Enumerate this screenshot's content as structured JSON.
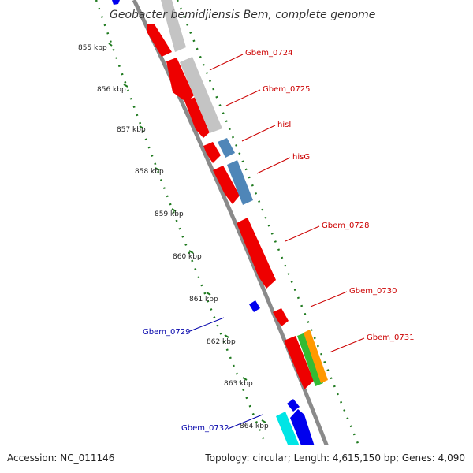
{
  "title": "Geobacter bemidjiensis Bem, complete genome",
  "accession_text": "Accession: NC_011146",
  "summary_text": "Topology: circular; Length: 4,615,150 bp; Genes: 4,090",
  "colors": {
    "backbone": "#8a8a8a",
    "ticks": "#1f7a1f",
    "forward_label": "#cc0000",
    "reverse_label": "#0000aa",
    "red": "#ee0000",
    "gray": "#c4c4c4",
    "steelblue": "#4f86b8",
    "blue": "#0000ee",
    "cyan": "#00e5e5",
    "green": "#33bb33",
    "orange": "#ff9900"
  },
  "ticks": [
    "855 kbp",
    "856 kbp",
    "857 kbp",
    "858 kbp",
    "859 kbp",
    "860 kbp",
    "861 kbp",
    "862 kbp",
    "863 kbp",
    "864 kbp"
  ],
  "labels": {
    "gbem_0724": "Gbem_0724",
    "gbem_0725": "Gbem_0725",
    "hisI": "hisI",
    "hisG": "hisG",
    "gbem_0728": "Gbem_0728",
    "gbem_0730": "Gbem_0730",
    "gbem_0731": "Gbem_0731",
    "gbem_0729": "Gbem_0729",
    "gbem_0732": "Gbem_0732"
  }
}
